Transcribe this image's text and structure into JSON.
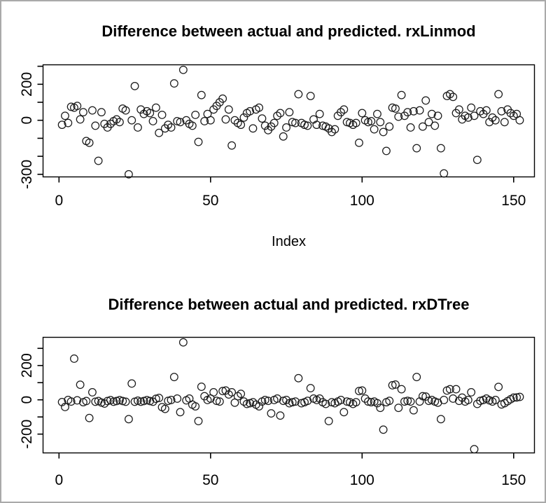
{
  "page": {
    "background": "#ffffff",
    "border_color": "#a9a9a9",
    "point_color": "#1a1a1a"
  },
  "chart_data": [
    {
      "type": "scatter",
      "title": "Difference between actual and predicted. rxLinmod",
      "xlabel": "Index",
      "ylabel": "",
      "marker": "open-circle",
      "grid": false,
      "legend": "none",
      "x_ticks": [
        0,
        50,
        100,
        150
      ],
      "y_ticks": [
        300,
        200,
        100,
        0,
        -100,
        -200,
        -300
      ],
      "y_tick_labels": [
        {
          "value": 200,
          "label": "200"
        },
        {
          "value": 0,
          "label": "0"
        },
        {
          "value": -300,
          "label": "-300"
        }
      ],
      "xlim": [
        -5.5,
        157.5
      ],
      "ylim": [
        -315,
        308
      ],
      "x_start": 1,
      "values": [
        -25,
        25,
        -15,
        75,
        70,
        80,
        5,
        45,
        -115,
        -125,
        55,
        -30,
        -225,
        45,
        -20,
        -40,
        -20,
        -5,
        5,
        -10,
        65,
        55,
        -300,
        0,
        190,
        -40,
        60,
        35,
        50,
        40,
        -5,
        70,
        -70,
        30,
        -45,
        -25,
        -40,
        205,
        -5,
        -10,
        280,
        0,
        -20,
        -30,
        30,
        -120,
        140,
        -5,
        35,
        0,
        60,
        80,
        100,
        120,
        5,
        60,
        -140,
        0,
        -15,
        -25,
        15,
        40,
        50,
        -45,
        60,
        70,
        10,
        -30,
        -55,
        -35,
        -15,
        25,
        40,
        -90,
        -40,
        45,
        -10,
        -15,
        145,
        -15,
        -25,
        -30,
        135,
        5,
        -25,
        35,
        -30,
        -35,
        -45,
        -65,
        -50,
        25,
        45,
        60,
        -10,
        -15,
        -25,
        -15,
        -125,
        40,
        0,
        -10,
        -5,
        -50,
        35,
        -10,
        -65,
        -170,
        -35,
        70,
        65,
        20,
        140,
        25,
        45,
        -40,
        50,
        -155,
        55,
        -35,
        110,
        -10,
        35,
        -30,
        25,
        -155,
        -295,
        135,
        145,
        130,
        40,
        60,
        5,
        25,
        15,
        70,
        25,
        -220,
        50,
        35,
        55,
        -10,
        15,
        0,
        145,
        50,
        -10,
        60,
        40,
        25,
        35,
        0
      ]
    },
    {
      "type": "scatter",
      "title": "Difference between actual and predicted. rxDTree",
      "xlabel": "",
      "ylabel": "",
      "marker": "open-circle",
      "grid": false,
      "legend": "none",
      "x_ticks": [
        0,
        50,
        100,
        150
      ],
      "y_ticks": [
        300,
        200,
        100,
        0,
        -100,
        -200
      ],
      "y_tick_labels": [
        {
          "value": 200,
          "label": "200"
        },
        {
          "value": 0,
          "label": "0"
        },
        {
          "value": -200,
          "label": "-200"
        }
      ],
      "xlim": [
        -5.5,
        157.5
      ],
      "ylim": [
        -308,
        364
      ],
      "x_start": 1,
      "values": [
        -13,
        -42,
        -1,
        -10,
        240,
        -3,
        88,
        -14,
        -7,
        -106,
        44,
        -11,
        -7,
        -16,
        -22,
        -7,
        -2,
        -11,
        -7,
        -2,
        -7,
        -11,
        -113,
        95,
        -11,
        -5,
        -11,
        -7,
        -2,
        -7,
        -11,
        6,
        11,
        -43,
        -53,
        -6,
        -1,
        133,
        7,
        -72,
        335,
        -3,
        7,
        -28,
        -38,
        -124,
        76,
        21,
        -1,
        7,
        44,
        -6,
        -10,
        51,
        54,
        31,
        44,
        -17,
        21,
        35,
        -10,
        -24,
        -20,
        -14,
        -28,
        -38,
        -10,
        -1,
        -6,
        -79,
        -1,
        7,
        -92,
        -6,
        -1,
        -20,
        -14,
        -10,
        126,
        -20,
        -14,
        -6,
        68,
        7,
        -1,
        7,
        -14,
        -24,
        -124,
        -14,
        -20,
        -10,
        -1,
        -72,
        -10,
        -14,
        -24,
        -14,
        51,
        54,
        7,
        -10,
        -14,
        -10,
        -20,
        -47,
        -174,
        -14,
        -6,
        85,
        89,
        -47,
        62,
        -10,
        -6,
        -10,
        -61,
        133,
        -10,
        21,
        19,
        -6,
        -1,
        -10,
        -17,
        -113,
        -1,
        54,
        62,
        7,
        62,
        -6,
        13,
        -10,
        -1,
        44,
        -288,
        -24,
        -6,
        -1,
        7,
        -3,
        -10,
        -1,
        75,
        -27,
        -20,
        -8,
        3,
        13,
        14,
        17
      ]
    }
  ]
}
